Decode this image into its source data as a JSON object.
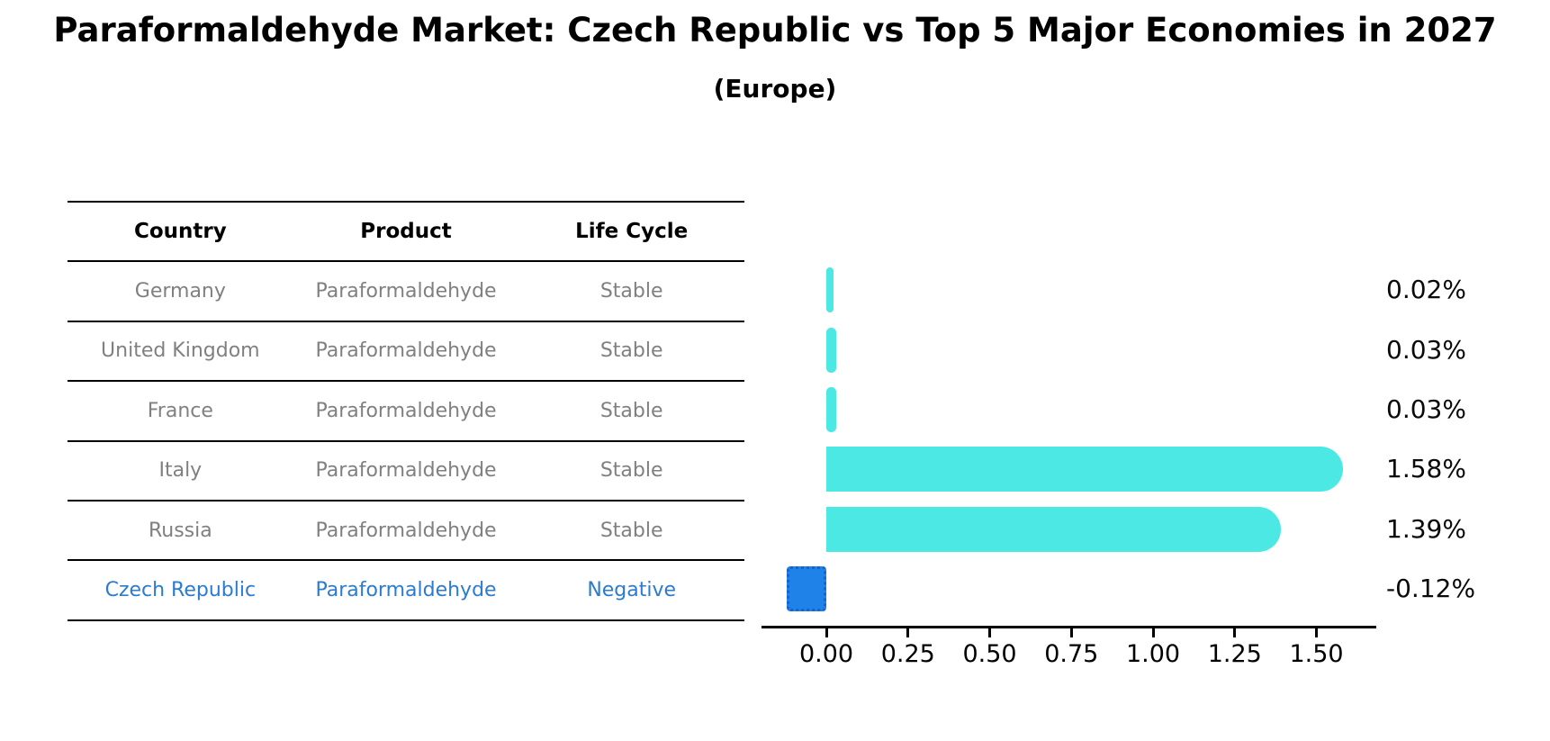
{
  "title": "Paraformaldehyde Market: Czech Republic vs Top 5 Major Economies in 2027",
  "subtitle": "(Europe)",
  "table": {
    "columns": [
      "Country",
      "Product",
      "Life Cycle"
    ],
    "rows": [
      {
        "country": "Germany",
        "product": "Paraformaldehyde",
        "life_cycle": "Stable",
        "highlight": false
      },
      {
        "country": "United Kingdom",
        "product": "Paraformaldehyde",
        "life_cycle": "Stable",
        "highlight": false
      },
      {
        "country": "France",
        "product": "Paraformaldehyde",
        "life_cycle": "Stable",
        "highlight": false
      },
      {
        "country": "Italy",
        "product": "Paraformaldehyde",
        "life_cycle": "Stable",
        "highlight": false
      },
      {
        "country": "Russia",
        "product": "Paraformaldehyde",
        "life_cycle": "Stable",
        "highlight": false
      },
      {
        "country": "Czech Republic",
        "product": "Paraformaldehyde",
        "life_cycle": "Negative",
        "highlight": true
      }
    ]
  },
  "chart_data": {
    "type": "bar",
    "orientation": "horizontal",
    "title": "Paraformaldehyde Market: Czech Republic vs Top 5 Major Economies in 2027",
    "subtitle": "(Europe)",
    "categories": [
      "Germany",
      "United Kingdom",
      "France",
      "Italy",
      "Russia",
      "Czech Republic"
    ],
    "values": [
      0.02,
      0.03,
      0.03,
      1.58,
      1.39,
      -0.12
    ],
    "value_labels": [
      "0.02%",
      "0.03%",
      "0.03%",
      "1.58%",
      "1.39%",
      "-0.12%"
    ],
    "xtick_values": [
      0.0,
      0.25,
      0.5,
      0.75,
      1.0,
      1.25,
      1.5
    ],
    "xtick_labels": [
      "0.00",
      "0.25",
      "0.50",
      "0.75",
      "1.00",
      "1.25",
      "1.50"
    ],
    "xlim": [
      -0.2,
      1.68
    ],
    "grid": false,
    "legend": "none",
    "bar_color": "#4BE8E4",
    "highlight_color": "#1E82E8",
    "highlight_border_color": "#1464CE",
    "highlight_index": 5,
    "highlight_text_color": "#2B7BCE",
    "normal_text_color": "#808080"
  }
}
